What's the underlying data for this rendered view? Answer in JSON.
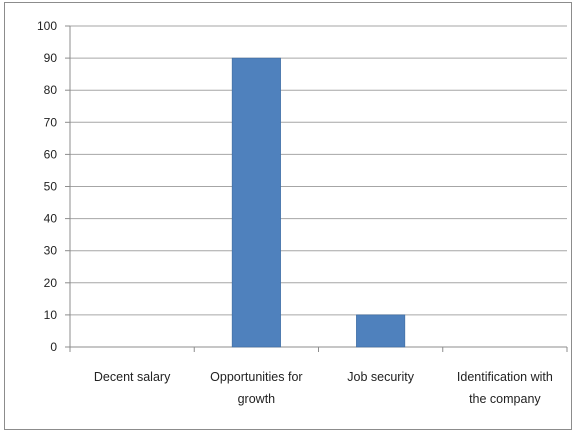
{
  "chart_data": {
    "type": "bar",
    "title": "",
    "xlabel": "",
    "ylabel": "",
    "categories": [
      [
        "Decent salary"
      ],
      [
        "Opportunities for",
        "growth"
      ],
      [
        "Job security"
      ],
      [
        "Identification with",
        "the company"
      ]
    ],
    "values": [
      0,
      90,
      10,
      0
    ],
    "ylim": [
      0,
      100
    ],
    "yticks": [
      0,
      10,
      20,
      30,
      40,
      50,
      60,
      70,
      80,
      90,
      100
    ],
    "grid": true,
    "legend": "none",
    "colors": {
      "bar": "#4f81bd",
      "bar_edge": "#3c6a9f",
      "grid": "#a6a6a6",
      "axis": "#8c8c8c",
      "text": "#222222"
    }
  }
}
